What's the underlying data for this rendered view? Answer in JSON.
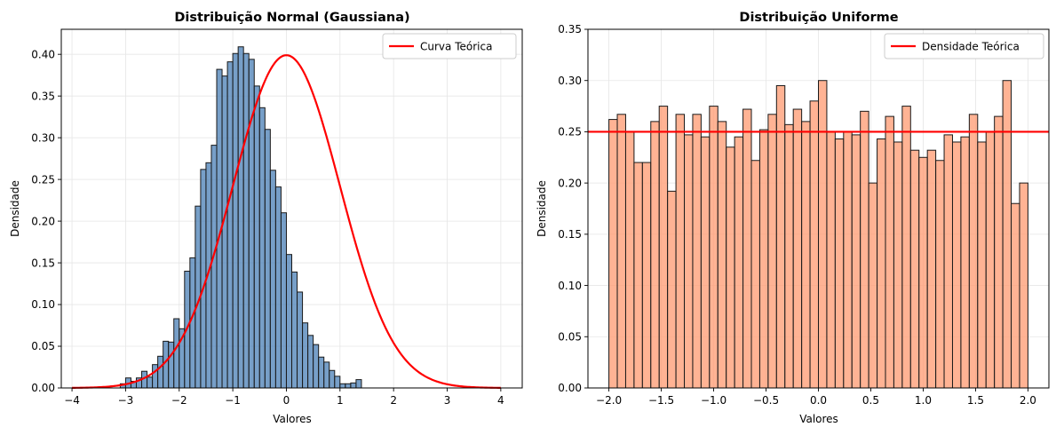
{
  "chart_data": [
    {
      "type": "bar",
      "title": "Distribuição Normal (Gaussiana)",
      "xlabel": "Valores",
      "ylabel": "Densidade",
      "xlim": [
        -4.2,
        4.4
      ],
      "ylim": [
        0,
        0.43
      ],
      "grid": true,
      "legend_position": "top-right",
      "xticks": [
        -4,
        -3,
        -2,
        -1,
        0,
        1,
        2,
        3,
        4
      ],
      "xtick_labels": [
        "−4",
        "−3",
        "−2",
        "−1",
        "0",
        "1",
        "2",
        "3",
        "4"
      ],
      "yticks": [
        0,
        0.05,
        0.1,
        0.15,
        0.2,
        0.25,
        0.3,
        0.35,
        0.4
      ],
      "ytick_labels": [
        "0.00",
        "0.05",
        "0.10",
        "0.15",
        "0.20",
        "0.25",
        "0.30",
        "0.35",
        "0.40"
      ],
      "bar_color": "#4a7fb5",
      "bar_edge": "#1a1a1a",
      "bins_start": -3.1,
      "bin_width": 0.1,
      "values": [
        0.005,
        0.012,
        0.008,
        0.012,
        0.02,
        0.013,
        0.028,
        0.038,
        0.056,
        0.055,
        0.083,
        0.071,
        0.14,
        0.156,
        0.218,
        0.262,
        0.27,
        0.291,
        0.382,
        0.374,
        0.391,
        0.401,
        0.409,
        0.401,
        0.394,
        0.362,
        0.336,
        0.31,
        0.261,
        0.241,
        0.21,
        0.16,
        0.139,
        0.115,
        0.078,
        0.063,
        0.052,
        0.037,
        0.031,
        0.021,
        0.014,
        0.005,
        0.005,
        0.006,
        0.01
      ],
      "series": [
        {
          "name": "Curva Teórica",
          "kind": "line",
          "color": "#ff0000",
          "function": "normal_pdf",
          "mean": 0,
          "std": 1,
          "x_range": [
            -4,
            4
          ]
        }
      ]
    },
    {
      "type": "bar",
      "title": "Distribuição Uniforme",
      "xlabel": "Valores",
      "ylabel": "Densidade",
      "xlim": [
        -2.2,
        2.2
      ],
      "ylim": [
        0,
        0.35
      ],
      "grid": true,
      "legend_position": "top-right",
      "xticks": [
        -2.0,
        -1.5,
        -1.0,
        -0.5,
        0.0,
        0.5,
        1.0,
        1.5,
        2.0
      ],
      "xtick_labels": [
        "−2.0",
        "−1.5",
        "−1.0",
        "−0.5",
        "0.0",
        "0.5",
        "1.0",
        "1.5",
        "2.0"
      ],
      "yticks": [
        0,
        0.05,
        0.1,
        0.15,
        0.2,
        0.25,
        0.3,
        0.35
      ],
      "ytick_labels": [
        "0.00",
        "0.05",
        "0.10",
        "0.15",
        "0.20",
        "0.25",
        "0.30",
        "0.35"
      ],
      "bar_color": "#ff9a70",
      "bar_edge": "#1a1a1a",
      "bins_start": -2.0,
      "bin_width": 0.08,
      "values": [
        0.262,
        0.267,
        0.25,
        0.22,
        0.22,
        0.26,
        0.275,
        0.192,
        0.267,
        0.247,
        0.267,
        0.245,
        0.275,
        0.26,
        0.235,
        0.245,
        0.272,
        0.222,
        0.252,
        0.267,
        0.295,
        0.257,
        0.272,
        0.26,
        0.28,
        0.3,
        0.25,
        0.243,
        0.25,
        0.247,
        0.27,
        0.2,
        0.243,
        0.265,
        0.24,
        0.275,
        0.232,
        0.225,
        0.232,
        0.222,
        0.247,
        0.24,
        0.245,
        0.267,
        0.24,
        0.25,
        0.265,
        0.3,
        0.18,
        0.2
      ],
      "series": [
        {
          "name": "Densidade Teórica",
          "kind": "hline",
          "color": "#ff0000",
          "value": 0.25
        }
      ]
    }
  ]
}
